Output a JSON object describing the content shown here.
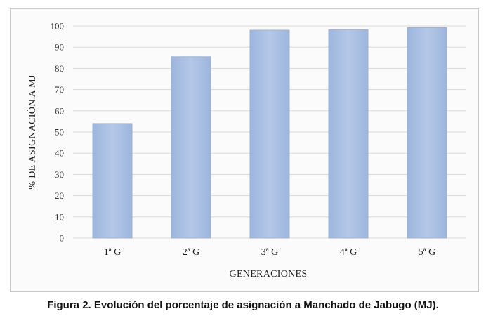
{
  "chart_data": {
    "type": "bar",
    "categories": [
      "1ª G",
      "2ª G",
      "3ª G",
      "4ª G",
      "5ª G"
    ],
    "values": [
      54,
      85.5,
      98,
      98.3,
      99.2
    ],
    "xlabel": "GENERACIONES",
    "ylabel": "% DE ASIGNACIÓN A MJ",
    "ylim": [
      0,
      100
    ],
    "yticks": [
      0,
      10,
      20,
      30,
      40,
      50,
      60,
      70,
      80,
      90,
      100
    ],
    "grid": true,
    "bar_color": "#a9c0e3"
  },
  "caption": "Figura 2. Evolución del porcentaje de asignación a Manchado de Jabugo (MJ)."
}
